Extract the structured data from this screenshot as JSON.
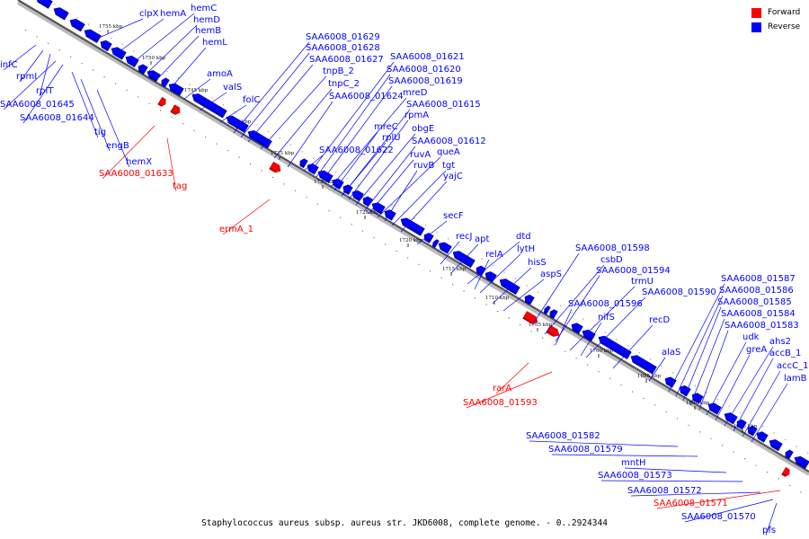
{
  "legend": {
    "items": [
      {
        "label": "Forward",
        "color": "#ff0000"
      },
      {
        "label": "Reverse",
        "color": "#0000ff"
      }
    ]
  },
  "footer": {
    "caption": "Staphylococcus aureus subsp. aureus str. JKD6008, complete genome. - 0..2924344"
  },
  "colors": {
    "forward": "#ff0000",
    "reverse": "#0000ff",
    "backbone": "#555555"
  },
  "ticks": [
    "1755 kbp",
    "1750 kbp",
    "1745 kbp",
    "1740 kbp",
    "1735 kbp",
    "1730 kbp",
    "1725 kbp",
    "1720 kbp",
    "1715 kbp",
    "1710 kbp",
    "1705 kbp",
    "1700 kbp",
    "1695 kbp",
    "1690 kbp",
    "1685 kbp"
  ],
  "genes": [
    {
      "label": "clpX",
      "strand": "reverse"
    },
    {
      "label": "hemA",
      "strand": "reverse"
    },
    {
      "label": "hemC",
      "strand": "reverse"
    },
    {
      "label": "hemD",
      "strand": "reverse"
    },
    {
      "label": "hemB",
      "strand": "reverse"
    },
    {
      "label": "hemL",
      "strand": "reverse"
    },
    {
      "label": "infC",
      "strand": "reverse"
    },
    {
      "label": "rpmI",
      "strand": "reverse"
    },
    {
      "label": "rplT",
      "strand": "reverse"
    },
    {
      "label": "SAA6008_01645",
      "strand": "reverse"
    },
    {
      "label": "SAA6008_01644",
      "strand": "reverse"
    },
    {
      "label": "tig",
      "strand": "reverse"
    },
    {
      "label": "engB",
      "strand": "reverse"
    },
    {
      "label": "hemX",
      "strand": "reverse"
    },
    {
      "label": "amoA",
      "strand": "reverse"
    },
    {
      "label": "valS",
      "strand": "reverse"
    },
    {
      "label": "folC",
      "strand": "reverse"
    },
    {
      "label": "SAA6008_01629",
      "strand": "reverse"
    },
    {
      "label": "SAA6008_01628",
      "strand": "reverse"
    },
    {
      "label": "SAA6008_01627",
      "strand": "reverse"
    },
    {
      "label": "tnpB_2",
      "strand": "reverse"
    },
    {
      "label": "tnpC_2",
      "strand": "reverse"
    },
    {
      "label": "SAA6008_01624",
      "strand": "reverse"
    },
    {
      "label": "SAA6008_01621",
      "strand": "reverse"
    },
    {
      "label": "SAA6008_01620",
      "strand": "reverse"
    },
    {
      "label": "SAA6008_01619",
      "strand": "reverse"
    },
    {
      "label": "mreD",
      "strand": "reverse"
    },
    {
      "label": "SAA6008_01615",
      "strand": "reverse"
    },
    {
      "label": "rpmA",
      "strand": "reverse"
    },
    {
      "label": "mreC",
      "strand": "reverse"
    },
    {
      "label": "rplU",
      "strand": "reverse"
    },
    {
      "label": "obgE",
      "strand": "reverse"
    },
    {
      "label": "SAA6008_01612",
      "strand": "reverse"
    },
    {
      "label": "SAA6008_01622",
      "strand": "reverse"
    },
    {
      "label": "ruvA",
      "strand": "reverse"
    },
    {
      "label": "queA",
      "strand": "reverse"
    },
    {
      "label": "ruvB",
      "strand": "reverse"
    },
    {
      "label": "tgt",
      "strand": "reverse"
    },
    {
      "label": "yajC",
      "strand": "reverse"
    },
    {
      "label": "secF",
      "strand": "reverse"
    },
    {
      "label": "recJ",
      "strand": "reverse"
    },
    {
      "label": "apt",
      "strand": "reverse"
    },
    {
      "label": "dtd",
      "strand": "reverse"
    },
    {
      "label": "lytH",
      "strand": "reverse"
    },
    {
      "label": "relA",
      "strand": "reverse"
    },
    {
      "label": "hisS",
      "strand": "reverse"
    },
    {
      "label": "aspS",
      "strand": "reverse"
    },
    {
      "label": "SAA6008_01598",
      "strand": "reverse"
    },
    {
      "label": "csbD",
      "strand": "reverse"
    },
    {
      "label": "SAA6008_01594",
      "strand": "reverse"
    },
    {
      "label": "trmU",
      "strand": "reverse"
    },
    {
      "label": "SAA6008_01590",
      "strand": "reverse"
    },
    {
      "label": "SAA6008_01596",
      "strand": "reverse"
    },
    {
      "label": "nifS",
      "strand": "reverse"
    },
    {
      "label": "recD",
      "strand": "reverse"
    },
    {
      "label": "alaS",
      "strand": "reverse"
    },
    {
      "label": "SAA6008_01587",
      "strand": "reverse"
    },
    {
      "label": "SAA6008_01586",
      "strand": "reverse"
    },
    {
      "label": "SAA6008_01585",
      "strand": "reverse"
    },
    {
      "label": "SAA6008_01584",
      "strand": "reverse"
    },
    {
      "label": "SAA6008_01583",
      "strand": "reverse"
    },
    {
      "label": "udk",
      "strand": "reverse"
    },
    {
      "label": "greA",
      "strand": "reverse"
    },
    {
      "label": "ahs2",
      "strand": "reverse"
    },
    {
      "label": "accB_1",
      "strand": "reverse"
    },
    {
      "label": "accC_1",
      "strand": "reverse"
    },
    {
      "label": "lamB",
      "strand": "reverse"
    },
    {
      "label": "SAA6008_01582",
      "strand": "reverse"
    },
    {
      "label": "SAA6008_01579",
      "strand": "reverse"
    },
    {
      "label": "mntH",
      "strand": "reverse"
    },
    {
      "label": "SAA6008_01573",
      "strand": "reverse"
    },
    {
      "label": "SAA6008_01572",
      "strand": "reverse"
    },
    {
      "label": "SAA6008_01570",
      "strand": "reverse"
    },
    {
      "label": "pfs",
      "strand": "reverse"
    },
    {
      "label": "SAA6008_01633",
      "strand": "forward"
    },
    {
      "label": "tag",
      "strand": "forward"
    },
    {
      "label": "ermA_1",
      "strand": "forward"
    },
    {
      "label": "rarA",
      "strand": "forward"
    },
    {
      "label": "SAA6008_01593",
      "strand": "forward"
    },
    {
      "label": "SAA6008_01571",
      "strand": "forward"
    }
  ]
}
